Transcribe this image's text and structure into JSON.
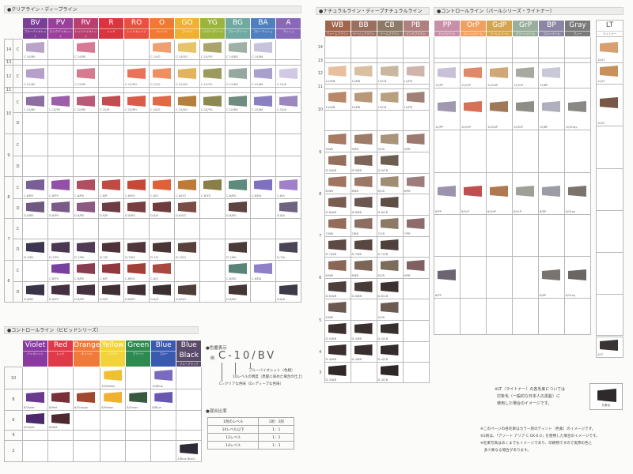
{
  "clear": {
    "title": "●クリアライン・ディープライン",
    "columns": [
      {
        "name": "BV",
        "sub": "ブルーバイオレット",
        "color": "#7b3f98"
      },
      {
        "name": "PV",
        "sub": "ピンクバイオレット",
        "color": "#9b3f9a"
      },
      {
        "name": "RV",
        "sub": "レッドバイオレット",
        "color": "#b83f6e"
      },
      {
        "name": "R",
        "sub": "レッド",
        "color": "#d8353e"
      },
      {
        "name": "RO",
        "sub": "レッドオレンジ",
        "color": "#e8503f"
      },
      {
        "name": "O",
        "sub": "オレンジ",
        "color": "#ef7a30"
      },
      {
        "name": "GO",
        "sub": "ゴールド",
        "color": "#f2b033"
      },
      {
        "name": "YG",
        "sub": "イエローグリーン",
        "color": "#9bb53c"
      },
      {
        "name": "BG",
        "sub": "ブルーグリーン",
        "color": "#6fa9a0"
      },
      {
        "name": "BA",
        "sub": "ブルーアッシュ",
        "color": "#4f7fc0"
      },
      {
        "name": "A",
        "sub": "アッシュ",
        "color": "#8a68b8"
      }
    ],
    "levels": [
      {
        "level": "14",
        "subs": [
          {
            "type": "C",
            "cells": [
              [
                "C-14/BV",
                "#b9a3c9"
              ],
              null,
              [
                "C-14/RV",
                "#d87a96"
              ],
              null,
              null,
              [
                "C-14/O",
                "#eea070"
              ],
              [
                "C-14/GO",
                "#e8c468"
              ],
              [
                "C-14/YG",
                "#a9a46a"
              ],
              [
                "C-14/BG",
                "#9fb0a6"
              ],
              [
                "C-14/BA",
                "#c8c3dd"
              ],
              null
            ]
          }
        ]
      },
      {
        "level": "13",
        "subs": [
          {
            "type": "",
            "cells": []
          }
        ]
      },
      {
        "level": "12",
        "subs": [
          {
            "type": "C",
            "cells": [
              [
                "C-12/BV",
                "#b6a0c8"
              ],
              null,
              [
                "C-12/RV",
                "#d67b8e"
              ],
              null,
              [
                "C-12/RO",
                "#e8735a"
              ],
              [
                "C-12/O",
                "#ef9060"
              ],
              [
                "C-12/GO",
                "#e2b25c"
              ],
              [
                "C-12/YG",
                "#9c9a5c"
              ],
              [
                "C-12/BG",
                "#94a8a0"
              ],
              [
                "C-12/BA",
                "#a9a0cc"
              ],
              [
                "C-12/A",
                "#d0c8e4"
              ]
            ]
          }
        ]
      },
      {
        "level": "11",
        "subs": [
          {
            "type": "",
            "cells": []
          }
        ]
      },
      {
        "level": "10",
        "subs": [
          {
            "type": "C",
            "cells": [
              [
                "C-10/BV",
                "#8c6ea0"
              ],
              [
                "C-10/PV",
                "#9c5ea8"
              ],
              [
                "C-10/RV",
                "#b85a78"
              ],
              [
                "C-10/R",
                "#c04e50"
              ],
              [
                "C-10/RO",
                "#d85c48"
              ],
              [
                "C-10/O",
                "#e06a48"
              ],
              [
                "C-10/GO",
                "#b5803e"
              ],
              [
                "C-10/YG",
                "#8c8a52"
              ],
              [
                "C-10/BG",
                "#6e8c80"
              ],
              [
                "C-10/BA",
                "#8a80c0"
              ],
              [
                "C-10/A",
                "#9c88bc"
              ]
            ]
          },
          {
            "type": "D",
            "cells": []
          }
        ]
      },
      {
        "level": "9",
        "subs": [
          {
            "type": "C",
            "cells": []
          },
          {
            "type": "D",
            "cells": []
          }
        ]
      },
      {
        "level": "8",
        "subs": [
          {
            "type": "C",
            "cells": [
              [
                "C-8/BV",
                "#7a5e98"
              ],
              [
                "C-8/PV",
                "#9450a8"
              ],
              [
                "C-8/RV",
                "#b04e62"
              ],
              [
                "C-8/R",
                "#c04a44"
              ],
              [
                "C-8/RO",
                "#c84838"
              ],
              [
                "C-8/O",
                "#e06038"
              ],
              [
                "C-8/GO",
                "#c07a38"
              ],
              [
                "C-8/YG",
                "#8a7e48"
              ],
              [
                "C-8/BG",
                "#5e8c7c"
              ],
              [
                "C-8/BA",
                "#8070c0"
              ],
              [
                "C-8/A",
                "#a080c8"
              ]
            ]
          },
          {
            "type": "D",
            "cells": [
              [
                "D-8/BV",
                "#6e5a80"
              ],
              [
                "D-8/PV",
                "#7a5a88"
              ],
              [
                "D-8/RV",
                "#8a5a80"
              ],
              [
                "D-8/R",
                "#6e3c44"
              ],
              [
                "D-8/RO",
                "#783e40"
              ],
              [
                "D-8/O",
                "#6e3c3c"
              ],
              [
                "D-8/GO",
                "#7a4e44"
              ],
              null,
              [
                "D-8/BG",
                "#5e4440"
              ],
              null,
              [
                "D-8/A",
                "#6e6480"
              ]
            ]
          }
        ]
      },
      {
        "level": "7",
        "subs": [
          {
            "type": "C",
            "cells": []
          },
          {
            "type": "D",
            "cells": [
              [
                "D-7/BV",
                "#3e3650"
              ],
              [
                "D-7/PV",
                "#4a3850"
              ],
              [
                "D-7/RV",
                "#503a55"
              ],
              [
                "D-7/R",
                "#4e3238"
              ],
              [
                "D-7/RO",
                "#50363a"
              ],
              [
                "D-7/O",
                "#4a3434"
              ],
              [
                "D-7/GO",
                "#58403c"
              ],
              null,
              [
                "D-7/BG",
                "#4a3a38"
              ],
              null,
              [
                "D-7/A",
                "#4a4456"
              ]
            ]
          }
        ]
      },
      {
        "level": "6",
        "subs": [
          {
            "type": "C",
            "cells": [
              null,
              [
                "C-6/PV",
                "#7a40a0"
              ],
              [
                "C-6/RV",
                "#8a3c50"
              ],
              [
                "C-6/R",
                "#903a40"
              ],
              [
                "C-6/RO",
                "#a04038"
              ],
              [
                "C-6/O",
                "#a84a40"
              ],
              null,
              null,
              [
                "C-6/BG",
                "#5a8478"
              ],
              [
                "C-6/BA",
                "#9080c8"
              ],
              null
            ]
          },
          {
            "type": "D",
            "cells": [
              [
                "D-6/BV",
                "#3a3448"
              ],
              [
                "D-6/PV",
                "#44303e"
              ],
              [
                "D-6/RV",
                "#44303e"
              ],
              [
                "D-6/R",
                "#403034"
              ],
              [
                "D-6/RO",
                "#403036"
              ],
              [
                "D-6/O",
                "#3a3032"
              ],
              [
                "D-6/GO",
                "#4e3e3a"
              ],
              null,
              [
                "D-6/BG",
                "#443634"
              ],
              null,
              [
                "D-6/A",
                "#3e3a48"
              ]
            ]
          }
        ]
      }
    ]
  },
  "natural": {
    "title": "●ナチュラルライン・ディープナチュラルライン",
    "columns": [
      {
        "name": "WB",
        "sub": "ウォームブラウン",
        "color": "#a0664c"
      },
      {
        "name": "BB",
        "sub": "ベージュブラウン",
        "color": "#9a7060"
      },
      {
        "name": "CB",
        "sub": "クールブラウン",
        "color": "#8c7a66"
      },
      {
        "name": "PB",
        "sub": "ピンクブラウン",
        "color": "#b08080"
      }
    ],
    "levels": [
      {
        "level": "14",
        "subs": [
          []
        ]
      },
      {
        "level": "13",
        "subs": [
          []
        ]
      },
      {
        "level": "12",
        "subs": [
          [
            [
              "12/WB",
              "#e8c0a0"
            ],
            [
              "12/BB",
              "#d8c0a0"
            ],
            [
              "12/CB",
              "#c8b8a0"
            ],
            [
              "12/PB",
              "#d0b4ac"
            ]
          ]
        ]
      },
      {
        "level": "11",
        "subs": [
          []
        ]
      },
      {
        "level": "10",
        "subs": [
          [
            [
              "10/WB",
              "#b88868"
            ],
            [
              "10/BB",
              "#b89878"
            ],
            [
              "10/CB",
              "#b8a080"
            ],
            [
              "10/PB",
              "#a08078"
            ]
          ],
          []
        ]
      },
      {
        "level": "9",
        "subs": [
          [
            [
              "9/WB",
              "#a87a64"
            ],
            [
              "9/BB",
              "#9c7c68"
            ],
            [
              "9/CB",
              "#a89478"
            ],
            [
              "9/PB",
              "#9c7a70"
            ]
          ],
          [
            [
              "D-9/WB",
              "#94705c"
            ],
            [
              "D-9/BB",
              "#7c6458"
            ],
            [
              "D-9/CB",
              "#6e5e50"
            ],
            null
          ]
        ]
      },
      {
        "level": "8",
        "subs": [
          [
            [
              "8/WB",
              "#a07460"
            ],
            [
              "8/BB",
              "#9c7868"
            ],
            [
              "8/CB",
              "#a08e74"
            ],
            [
              "8/PB",
              "#9c7c7c"
            ]
          ],
          [
            [
              "D-8/WB",
              "#7a5c50"
            ],
            [
              "D-8/BB",
              "#6c5650"
            ],
            [
              "D-8/CB",
              "#5e4e46"
            ],
            null
          ]
        ]
      },
      {
        "level": "7",
        "subs": [
          [
            [
              "7/WB",
              "#946c5c"
            ],
            [
              "7/BB",
              "#8e6e60"
            ],
            [
              "7/CB",
              "#8c7a66"
            ],
            [
              "7/PB",
              "#8e6c6c"
            ]
          ],
          [
            [
              "D-7/WB",
              "#5c4a44"
            ],
            [
              "D-7/BB",
              "#584640"
            ],
            [
              "D-7/CB",
              "#4e403a"
            ],
            null
          ]
        ]
      },
      {
        "level": "6",
        "subs": [
          [
            [
              "6/WB",
              "#8a6654"
            ],
            [
              "6/BB",
              "#7c6456"
            ],
            [
              "6/CB",
              "#7c6c5c"
            ],
            [
              "6/PB",
              "#806060"
            ]
          ],
          [
            [
              "D-6/WB",
              "#4c3e3a"
            ],
            [
              "D-6/BB",
              "#463c38"
            ],
            [
              "D-6/CB",
              "#3a3230"
            ],
            null
          ]
        ]
      },
      {
        "level": "5",
        "subs": [
          [
            [
              "5/WB",
              "#6c5850"
            ],
            null,
            [
              "5/CB",
              "#6c5c52"
            ],
            null
          ],
          [
            [
              "D-5/WB",
              "#3c302e"
            ],
            [
              "D-5/BB",
              "#3a302e"
            ],
            [
              "D-5/CB",
              "#36302e"
            ],
            null
          ]
        ]
      },
      {
        "level": "4",
        "subs": [
          [
            [
              "D-4/WB",
              "#3a2e2e"
            ],
            [
              "D-4/BB",
              "#382e2e"
            ],
            [
              "D-4/CB",
              "#342c2c"
            ],
            null
          ]
        ]
      },
      {
        "level": "3",
        "subs": [
          [
            [
              "D-3/WB",
              "#302828"
            ],
            null,
            [
              "D-3/CB",
              "#2e2828"
            ],
            null
          ]
        ]
      }
    ]
  },
  "pearl": {
    "title": "●コントロールライン（パールシリーズ・ライトナー）",
    "columns": [
      {
        "name": "PP",
        "sub": "ピンクパール",
        "color": "#c890a8"
      },
      {
        "name": "OrP",
        "sub": "オレンジパール",
        "color": "#f0a060"
      },
      {
        "name": "GdP",
        "sub": "ゴールドパール",
        "color": "#d4a450"
      },
      {
        "name": "GrP",
        "sub": "グリーンパール",
        "color": "#9aae9c"
      },
      {
        "name": "BP",
        "sub": "ブルーパール",
        "color": "#8c86a4"
      },
      {
        "name": "Gray",
        "sub": "グレー",
        "color": "#7a7a7a"
      }
    ],
    "rows": [
      [],
      [],
      [
        [
          "12/PP",
          "#c8c0d8"
        ],
        [
          "12/OrP",
          "#e08868"
        ],
        [
          "12/GdP",
          "#d0a878"
        ],
        [
          "12/GrP",
          "#a8aaa0"
        ],
        [
          "12/BP",
          "#c8c8d8"
        ],
        null
      ],
      [
        [
          "10/PP",
          "#a098b0"
        ],
        [
          "10/OrP",
          "#d87058"
        ],
        [
          "10/GdP",
          "#a07858"
        ],
        [
          "10/GrP",
          "#8e8e86"
        ],
        [
          "10/BP",
          "#b0b0bc"
        ],
        [
          "10/Gray",
          "#8a8884"
        ]
      ],
      [],
      [
        [
          "8/PP",
          "#9c94ac"
        ],
        [
          "8/OrP",
          "#c05050"
        ],
        [
          "8/GdP",
          "#b07850"
        ],
        [
          "8/GrP",
          "#a0a098"
        ],
        [
          "8/BP",
          "#9c9ca4"
        ],
        [
          "8/Gray",
          "#7a746c"
        ]
      ],
      [],
      [
        [
          "6/PP",
          "#6c6470"
        ],
        null,
        null,
        null,
        [
          "6/BP",
          "#7a7470"
        ],
        [
          "6/Gray",
          "#6a6664"
        ]
      ],
      []
    ],
    "lightener": {
      "name": "LT",
      "sub": "ライトナー",
      "rows": [
        [
          "14/LT",
          "#d8a070"
        ],
        [
          "12/LT",
          "#c8905a"
        ],
        [
          "10/LT",
          "#7a5848"
        ],
        null,
        null,
        null,
        null,
        null,
        [
          "4/LT",
          "#3a3434"
        ]
      ]
    }
  },
  "vivid": {
    "title": "●コントロールライン（ビビッドシリーズ）",
    "columns": [
      {
        "name": "Violet",
        "sub": "バイオレット",
        "color": "#8a3aa0"
      },
      {
        "name": "Red",
        "sub": "レッド",
        "color": "#e03a48"
      },
      {
        "name": "Orange",
        "sub": "オレンジ",
        "color": "#f07a3a"
      },
      {
        "name": "Yellow",
        "sub": "イエロー",
        "color": "#f2d438"
      },
      {
        "name": "Green",
        "sub": "グリーン",
        "color": "#2f8a50"
      },
      {
        "name": "Blue",
        "sub": "ブルー",
        "color": "#3a5ab0"
      },
      {
        "name": "Blue Black",
        "sub": "ブルーブラック",
        "color": "#5a4a6a"
      }
    ],
    "levels": [
      {
        "level": "10",
        "cells": [
          null,
          null,
          null,
          [
            "10/Yellow",
            "#f0c030"
          ],
          null,
          [
            "10/Blue",
            "#7a6ac0"
          ],
          null
        ]
      },
      {
        "level": "8",
        "cells": [
          [
            "8/Violet",
            "#6a3a90"
          ],
          [
            "8/Red",
            "#7a3038"
          ],
          [
            "8/Orange",
            "#a04830"
          ],
          [
            "8/Yellow",
            "#f0b030"
          ],
          [
            "8/Green",
            "#3a5a40"
          ],
          [
            "8/Blue",
            "#6a58b0"
          ],
          null
        ]
      },
      {
        "level": "6",
        "cells": [
          [
            "6/Violet",
            "#4a2a6a"
          ],
          [
            "6/Red",
            "#4e2a30"
          ],
          null,
          null,
          null,
          null,
          null
        ]
      },
      {
        "level": "4",
        "cells": []
      },
      {
        "level": "2",
        "cells": [
          null,
          null,
          null,
          null,
          null,
          null,
          [
            "2/Blue Black",
            "#2e2a38"
          ]
        ]
      }
    ]
  },
  "notation": {
    "title": "●色番表示",
    "example_prefix": "例",
    "example": "C-10/BV",
    "hue": "ブルーバイオレット（色相）",
    "level": "10レベルの明度（黒髪に染めた場合の仕上）",
    "type": "C=クリアな色味（D=ディープな色味）"
  },
  "mixing": {
    "title": "●混合比率",
    "rows": [
      [
        "1剤のレベル",
        "1剤：2剤"
      ],
      [
        "10レベル以下",
        "1：1"
      ],
      [
        "12レベル",
        "1：2"
      ],
      [
        "14レベル",
        "1：3"
      ]
    ]
  },
  "lt_note": {
    "lines": [
      "※LT（ライトナー）の各毛束については",
      "対象毛（一般的な日本人の黒髪）に",
      "使用した場合のイメージです。"
    ],
    "sample_label": "対象毛",
    "sample_color": "#2e2a2c"
  },
  "footnotes": [
    "※このページの各毛束はカラー剤のティント（色素）のイメージです。",
    "※2剤は、「アソート アリア C OX-6.0」を使用した場合のイメージです。",
    "※毛束写真はあくまでもイメージであり、印刷物ですので実際の色と",
    "　多少異なる場合があります。"
  ]
}
